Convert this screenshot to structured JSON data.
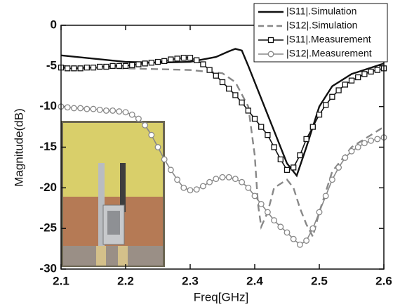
{
  "chart_data": {
    "type": "line",
    "x_label": "Freq[GHz]",
    "y_label": "Magnitude(dB)",
    "xlim": [
      2.1,
      2.6
    ],
    "xticks": [
      2.1,
      2.2,
      2.3,
      2.4,
      2.5,
      2.6
    ],
    "ylim": [
      -30,
      0
    ],
    "yticks": [
      -30,
      -25,
      -20,
      -15,
      -10,
      -5,
      0
    ],
    "legend": "upper right",
    "series": [
      {
        "name": "|S11|.Simulation",
        "color": "#111111",
        "dash": "solid",
        "marker": "none",
        "x": [
          2.1,
          2.15,
          2.2,
          2.25,
          2.3,
          2.34,
          2.36,
          2.37,
          2.38,
          2.39,
          2.41,
          2.43,
          2.45,
          2.465,
          2.48,
          2.5,
          2.52,
          2.55,
          2.6
        ],
        "values": [
          -3.7,
          -4.1,
          -4.5,
          -4.6,
          -4.5,
          -3.9,
          -3.2,
          -2.9,
          -3.1,
          -5,
          -9,
          -13,
          -17,
          -18.5,
          -15,
          -10,
          -7.5,
          -6,
          -4.7
        ]
      },
      {
        "name": "|S12|.Simulation",
        "color": "#888888",
        "dash": "dashed",
        "marker": "none",
        "x": [
          2.1,
          2.2,
          2.3,
          2.35,
          2.37,
          2.39,
          2.4,
          2.405,
          2.41,
          2.42,
          2.43,
          2.45,
          2.46,
          2.47,
          2.48,
          2.49,
          2.5,
          2.52,
          2.55,
          2.6
        ],
        "values": [
          -5.2,
          -5.3,
          -5.5,
          -5.9,
          -7,
          -10,
          -16,
          -22,
          -24.8,
          -23,
          -20,
          -19,
          -20,
          -22.5,
          -24.5,
          -26,
          -23,
          -18,
          -15,
          -12.5
        ]
      },
      {
        "name": "|S11|.Measurement",
        "color": "#111111",
        "dash": "solid",
        "marker": "square",
        "x": [
          2.1,
          2.11,
          2.12,
          2.13,
          2.14,
          2.15,
          2.16,
          2.17,
          2.18,
          2.19,
          2.2,
          2.21,
          2.22,
          2.23,
          2.24,
          2.25,
          2.26,
          2.27,
          2.28,
          2.29,
          2.3,
          2.31,
          2.32,
          2.33,
          2.34,
          2.35,
          2.36,
          2.37,
          2.38,
          2.39,
          2.4,
          2.41,
          2.42,
          2.43,
          2.44,
          2.45,
          2.46,
          2.47,
          2.48,
          2.49,
          2.5,
          2.51,
          2.52,
          2.53,
          2.54,
          2.55,
          2.56,
          2.57,
          2.58,
          2.59,
          2.6
        ],
        "values": [
          -5.2,
          -5.3,
          -5.3,
          -5.3,
          -5.2,
          -5.2,
          -5.1,
          -5.1,
          -5,
          -5,
          -5,
          -4.9,
          -4.8,
          -4.7,
          -4.6,
          -4.5,
          -4.4,
          -4.2,
          -4.1,
          -4,
          -4,
          -4.3,
          -4.8,
          -5.5,
          -6.2,
          -7,
          -7.8,
          -8.6,
          -9.5,
          -10.5,
          -11.5,
          -12.5,
          -13.5,
          -15,
          -16.5,
          -17.8,
          -17.5,
          -16,
          -14,
          -12.5,
          -11,
          -9.8,
          -8.8,
          -8,
          -7.3,
          -6.8,
          -6.4,
          -6,
          -5.7,
          -5.5,
          -5.3
        ]
      },
      {
        "name": "|S12|.Measurement",
        "color": "#888888",
        "dash": "solid",
        "marker": "circle",
        "x": [
          2.1,
          2.11,
          2.12,
          2.13,
          2.14,
          2.15,
          2.16,
          2.17,
          2.18,
          2.19,
          2.2,
          2.21,
          2.22,
          2.23,
          2.24,
          2.25,
          2.26,
          2.27,
          2.28,
          2.29,
          2.3,
          2.31,
          2.32,
          2.33,
          2.34,
          2.35,
          2.36,
          2.37,
          2.38,
          2.39,
          2.4,
          2.41,
          2.42,
          2.43,
          2.44,
          2.45,
          2.46,
          2.47,
          2.48,
          2.49,
          2.5,
          2.51,
          2.52,
          2.53,
          2.54,
          2.55,
          2.56,
          2.57,
          2.58,
          2.59,
          2.6
        ],
        "values": [
          -10,
          -10.1,
          -10.2,
          -10.2,
          -10.3,
          -10.3,
          -10.4,
          -10.5,
          -10.5,
          -10.6,
          -10.7,
          -11,
          -11.5,
          -12.3,
          -13.5,
          -15,
          -16.5,
          -17.8,
          -19,
          -20,
          -20.3,
          -20.2,
          -19.8,
          -19.3,
          -18.9,
          -18.7,
          -18.7,
          -18.9,
          -19.3,
          -20,
          -21,
          -22,
          -23,
          -24,
          -24.8,
          -25.5,
          -26.3,
          -27,
          -26.5,
          -25,
          -23,
          -21,
          -19,
          -17.5,
          -16.3,
          -15.5,
          -15,
          -14.5,
          -14.2,
          -14,
          -13.8
        ]
      }
    ]
  }
}
